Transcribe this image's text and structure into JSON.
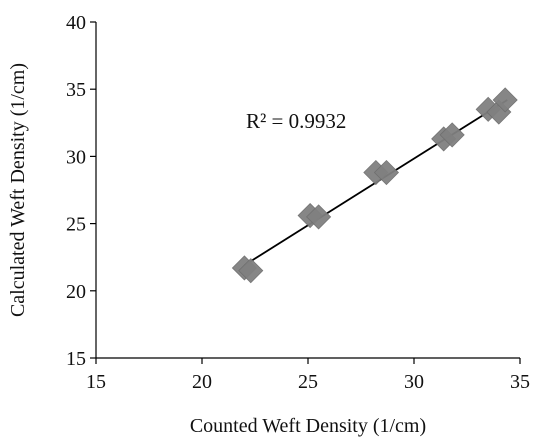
{
  "chart_data": {
    "type": "scatter",
    "xlabel": "Counted Weft Density (1/cm)",
    "ylabel": "Calculated Weft Density (1/cm)",
    "xlim": [
      15,
      35
    ],
    "ylim": [
      15,
      40
    ],
    "xticks": [
      "15",
      "20",
      "25",
      "30",
      "35"
    ],
    "yticks": [
      "15",
      "20",
      "25",
      "30",
      "35",
      "40"
    ],
    "grid": false,
    "series": [
      {
        "marker": "diamond",
        "color": "#808080",
        "points": [
          {
            "x": 22.0,
            "y": 21.7
          },
          {
            "x": 22.3,
            "y": 21.5
          },
          {
            "x": 25.1,
            "y": 25.6
          },
          {
            "x": 25.5,
            "y": 25.5
          },
          {
            "x": 28.2,
            "y": 28.8
          },
          {
            "x": 28.7,
            "y": 28.8
          },
          {
            "x": 31.4,
            "y": 31.3
          },
          {
            "x": 31.8,
            "y": 31.6
          },
          {
            "x": 33.5,
            "y": 33.5
          },
          {
            "x": 34.0,
            "y": 33.3
          },
          {
            "x": 34.3,
            "y": 34.2
          }
        ]
      }
    ],
    "trendline": {
      "x": [
        22.0,
        34.4
      ],
      "y": [
        21.9,
        34.2
      ],
      "color": "#000000"
    },
    "annotation": "R² = 0.9932"
  }
}
